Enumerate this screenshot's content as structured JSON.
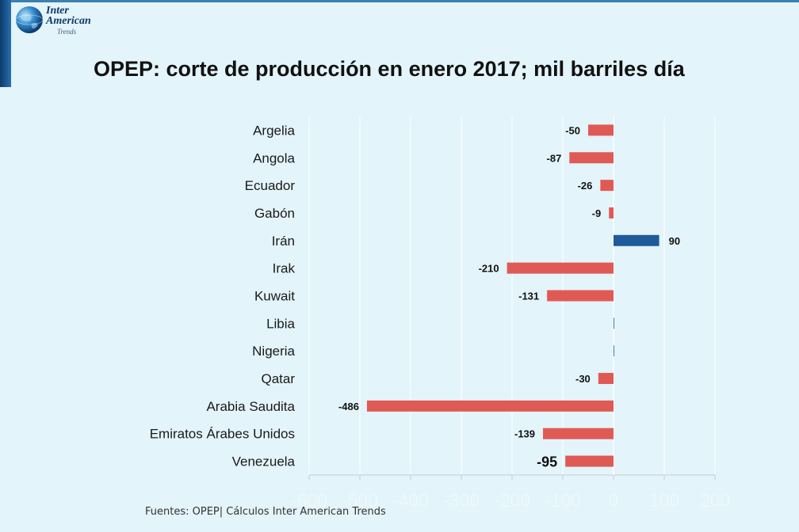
{
  "logo": {
    "line1": "Inter",
    "line2": "American",
    "line3": "Trends"
  },
  "colors": {
    "negative": "#e05a55",
    "positive": "#1f5b99",
    "grid": "#ffffff",
    "axis": "#c4cdd4",
    "tick_label": "#edf8fb"
  },
  "source_note": "Fuentes: OPEP| Cálculos Inter American Trends",
  "chart_data": {
    "type": "bar",
    "orientation": "horizontal",
    "title": "OPEP: corte de producción en enero 2017; mil barriles día",
    "xlabel": "",
    "ylabel": "",
    "xlim": [
      -600,
      200
    ],
    "x_ticks": [
      -600,
      -500,
      -400,
      -300,
      -200,
      -100,
      0,
      100,
      200
    ],
    "x_tick_labels": [
      "-600",
      "-500",
      "-400",
      "-300",
      "-200",
      "-100",
      "0",
      "100",
      "200"
    ],
    "grid": true,
    "legend": "none",
    "categories": [
      "Argelia",
      "Angola",
      "Ecuador",
      "Gabón",
      "Irán",
      "Irak",
      "Kuwait",
      "Libia",
      "Nigeria",
      "Qatar",
      "Arabia Saudita",
      "Emiratos Árabes Unidos",
      "Venezuela"
    ],
    "values": [
      -50,
      -87,
      -26,
      -9,
      90,
      -210,
      -131,
      0,
      0,
      -30,
      -486,
      -139,
      -95
    ],
    "data_labels": [
      "-50",
      "-87",
      "-26",
      "-9",
      "90",
      "-210",
      "-131",
      "",
      "",
      "-30",
      "-486",
      "-139",
      "-95"
    ]
  }
}
